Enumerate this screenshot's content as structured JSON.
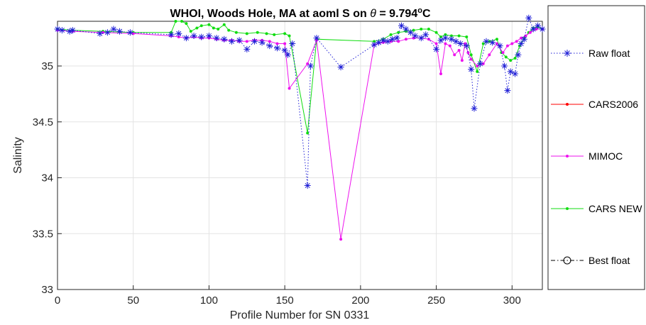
{
  "chart_data": {
    "type": "line",
    "title": "WHOI, Woods Hole, MA at aoml S on θ = 9.794°C",
    "title_parts": {
      "main": "WHOI, Woods Hole, MA at aoml S on ",
      "theta": "θ",
      "rest": " = 9.794",
      "deg": "o",
      "unit": "C"
    },
    "xlabel": "Profile Number for SN 0331",
    "ylabel": "Salinity",
    "xlim": [
      0,
      320
    ],
    "ylim": [
      33,
      35.4
    ],
    "xticks": [
      0,
      50,
      100,
      150,
      200,
      250,
      300
    ],
    "yticks": [
      33,
      33.5,
      34,
      34.5,
      35
    ],
    "ytick_labels": [
      "33",
      "33.5",
      "34",
      "34.5",
      "35"
    ],
    "grid": true,
    "legend_position": "outside-right",
    "series": [
      {
        "name": "Raw float",
        "color": "#1f1fd6",
        "style": "dotted-star",
        "points": [
          [
            0,
            35.33
          ],
          [
            3,
            35.32
          ],
          [
            8,
            35.31
          ],
          [
            10,
            35.32
          ],
          [
            28,
            35.29
          ],
          [
            33,
            35.3
          ],
          [
            37,
            35.33
          ],
          [
            41,
            35.31
          ],
          [
            48,
            35.3
          ],
          [
            75,
            35.28
          ],
          [
            80,
            35.29
          ],
          [
            85,
            35.25
          ],
          [
            90,
            35.27
          ],
          [
            95,
            35.26
          ],
          [
            100,
            35.27
          ],
          [
            105,
            35.25
          ],
          [
            110,
            35.24
          ],
          [
            115,
            35.22
          ],
          [
            120,
            35.23
          ],
          [
            125,
            35.15
          ],
          [
            130,
            35.22
          ],
          [
            135,
            35.21
          ],
          [
            140,
            35.18
          ],
          [
            145,
            35.16
          ],
          [
            150,
            35.14
          ],
          [
            152,
            35.1
          ],
          [
            155,
            35.2
          ],
          [
            165,
            33.93
          ],
          [
            167,
            35.0
          ],
          [
            171,
            35.25
          ],
          [
            187,
            34.99
          ],
          [
            209,
            35.19
          ],
          [
            212,
            35.21
          ],
          [
            215,
            35.23
          ],
          [
            218,
            35.22
          ],
          [
            221,
            35.24
          ],
          [
            224,
            35.25
          ],
          [
            227,
            35.36
          ],
          [
            230,
            35.33
          ],
          [
            233,
            35.3
          ],
          [
            236,
            35.27
          ],
          [
            240,
            35.25
          ],
          [
            243,
            35.28
          ],
          [
            250,
            35.15
          ],
          [
            253,
            35.23
          ],
          [
            256,
            35.25
          ],
          [
            260,
            35.24
          ],
          [
            263,
            35.22
          ],
          [
            266,
            35.2
          ],
          [
            270,
            35.18
          ],
          [
            273,
            34.97
          ],
          [
            275,
            34.62
          ],
          [
            279,
            35.02
          ],
          [
            283,
            35.22
          ],
          [
            287,
            35.21
          ],
          [
            292,
            35.18
          ],
          [
            295,
            35.0
          ],
          [
            297,
            34.78
          ],
          [
            299,
            34.95
          ],
          [
            302,
            34.93
          ],
          [
            304,
            35.1
          ],
          [
            306,
            35.2
          ],
          [
            308,
            35.24
          ],
          [
            311,
            35.43
          ],
          [
            314,
            35.33
          ],
          [
            317,
            35.36
          ],
          [
            320,
            35.33
          ]
        ]
      },
      {
        "name": "CARS2006",
        "color": "#ff0000",
        "style": "solid-dot",
        "points": []
      },
      {
        "name": "MIMOC",
        "color": "#ee11ee",
        "style": "solid-dot",
        "points": [
          [
            0,
            35.32
          ],
          [
            10,
            35.31
          ],
          [
            30,
            35.3
          ],
          [
            50,
            35.29
          ],
          [
            75,
            35.27
          ],
          [
            80,
            35.26
          ],
          [
            85,
            35.25
          ],
          [
            90,
            35.26
          ],
          [
            95,
            35.25
          ],
          [
            100,
            35.25
          ],
          [
            105,
            35.24
          ],
          [
            110,
            35.23
          ],
          [
            115,
            35.23
          ],
          [
            120,
            35.22
          ],
          [
            125,
            35.22
          ],
          [
            130,
            35.23
          ],
          [
            135,
            35.23
          ],
          [
            140,
            35.22
          ],
          [
            145,
            35.2
          ],
          [
            150,
            35.2
          ],
          [
            153,
            34.8
          ],
          [
            165,
            35.02
          ],
          [
            171,
            35.23
          ],
          [
            187,
            33.45
          ],
          [
            209,
            35.19
          ],
          [
            215,
            35.21
          ],
          [
            220,
            35.22
          ],
          [
            225,
            35.22
          ],
          [
            230,
            35.24
          ],
          [
            235,
            35.25
          ],
          [
            240,
            35.25
          ],
          [
            245,
            35.24
          ],
          [
            250,
            35.2
          ],
          [
            253,
            34.93
          ],
          [
            256,
            35.2
          ],
          [
            259,
            35.18
          ],
          [
            262,
            35.1
          ],
          [
            265,
            35.14
          ],
          [
            267,
            35.05
          ],
          [
            269,
            35.2
          ],
          [
            271,
            35.12
          ],
          [
            273,
            35.06
          ],
          [
            277,
            35.0
          ],
          [
            281,
            35.02
          ],
          [
            285,
            35.1
          ],
          [
            290,
            35.2
          ],
          [
            294,
            35.12
          ],
          [
            297,
            35.18
          ],
          [
            300,
            35.2
          ],
          [
            303,
            35.22
          ],
          [
            306,
            35.25
          ],
          [
            309,
            35.27
          ],
          [
            312,
            35.3
          ],
          [
            316,
            35.33
          ],
          [
            320,
            35.33
          ]
        ]
      },
      {
        "name": "CARS NEW",
        "color": "#11dd11",
        "style": "solid-dot",
        "points": [
          [
            0,
            35.33
          ],
          [
            10,
            35.32
          ],
          [
            30,
            35.31
          ],
          [
            50,
            35.3
          ],
          [
            75,
            35.3
          ],
          [
            78,
            35.4
          ],
          [
            82,
            35.4
          ],
          [
            85,
            35.38
          ],
          [
            88,
            35.31
          ],
          [
            92,
            35.34
          ],
          [
            95,
            35.36
          ],
          [
            100,
            35.37
          ],
          [
            103,
            35.34
          ],
          [
            106,
            35.33
          ],
          [
            110,
            35.37
          ],
          [
            113,
            35.32
          ],
          [
            118,
            35.3
          ],
          [
            125,
            35.29
          ],
          [
            132,
            35.3
          ],
          [
            138,
            35.29
          ],
          [
            143,
            35.28
          ],
          [
            150,
            35.29
          ],
          [
            153,
            35.27
          ],
          [
            165,
            34.4
          ],
          [
            171,
            35.24
          ],
          [
            209,
            35.22
          ],
          [
            215,
            35.24
          ],
          [
            220,
            35.28
          ],
          [
            225,
            35.3
          ],
          [
            230,
            35.31
          ],
          [
            235,
            35.32
          ],
          [
            240,
            35.33
          ],
          [
            245,
            35.33
          ],
          [
            250,
            35.3
          ],
          [
            253,
            35.26
          ],
          [
            256,
            35.28
          ],
          [
            260,
            35.27
          ],
          [
            265,
            35.27
          ],
          [
            270,
            35.26
          ],
          [
            273,
            35.1
          ],
          [
            277,
            34.95
          ],
          [
            281,
            35.2
          ],
          [
            285,
            35.22
          ],
          [
            290,
            35.24
          ],
          [
            293,
            35.12
          ],
          [
            296,
            35.08
          ],
          [
            299,
            35.05
          ],
          [
            302,
            35.07
          ],
          [
            305,
            35.18
          ],
          [
            308,
            35.25
          ],
          [
            311,
            35.3
          ],
          [
            314,
            35.34
          ],
          [
            317,
            35.35
          ],
          [
            320,
            35.33
          ]
        ]
      },
      {
        "name": "Best float",
        "color": "#000000",
        "style": "dashdot-circle",
        "points": []
      }
    ]
  }
}
